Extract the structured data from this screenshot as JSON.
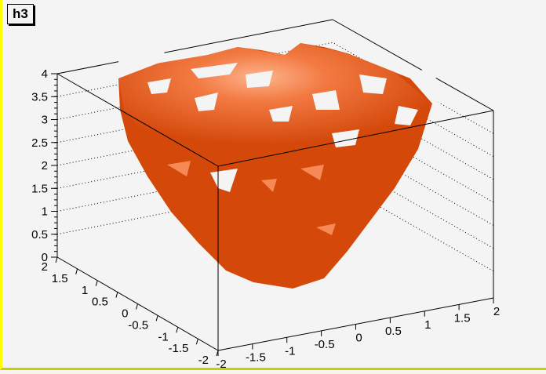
{
  "chart_data": {
    "type": "3d-isosurface",
    "title": "h3",
    "surface_color": "#d44a0c",
    "highlight_color": "#ffb090",
    "frame_color": "#ffff00",
    "xlim": [
      -2,
      2
    ],
    "ylim": [
      -2,
      2
    ],
    "zlim": [
      0,
      4
    ],
    "x_ticks": [
      "-2",
      "-1.5",
      "-1",
      "-0.5",
      "0",
      "0.5",
      "1",
      "1.5",
      "2"
    ],
    "y_ticks": [
      "2",
      "1.5",
      "1",
      "0.5",
      "0",
      "-0.5",
      "-1",
      "-1.5",
      "-2"
    ],
    "z_ticks": [
      "0",
      "0.5",
      "1",
      "1.5",
      "2",
      "2.5",
      "3",
      "3.5",
      "4"
    ],
    "grid": true
  }
}
